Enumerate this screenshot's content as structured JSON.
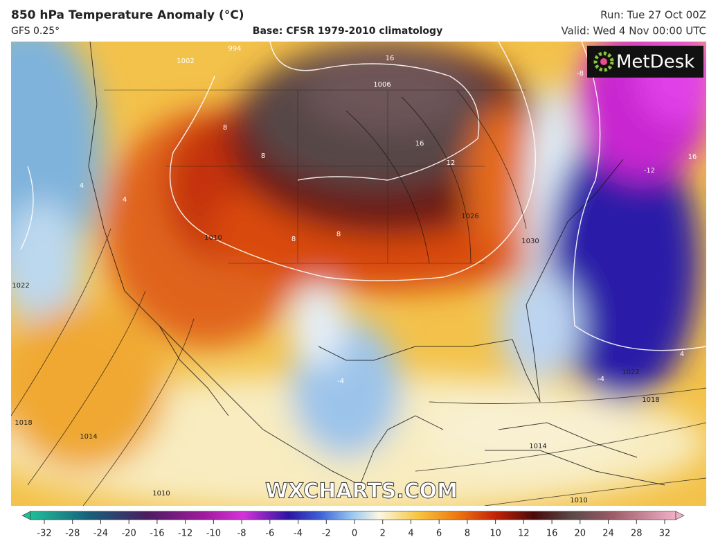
{
  "header": {
    "title": "850 hPa Temperature Anomaly (°C)",
    "model": "GFS 0.25°",
    "base": "Base: CFSR 1979-2010 climatology",
    "run": "Run: Tue 27 Oct 00Z",
    "valid": "Valid: Wed 4 Nov 00:00 UTC"
  },
  "logo": "MetDesk",
  "watermark": "WXCHARTS.COM",
  "map_labels": [
    "994",
    "1002",
    "16",
    "1006",
    "16",
    "12",
    "-8",
    "16",
    "-12",
    "8",
    "8",
    "8",
    "8",
    "4",
    "4",
    "1010",
    "1026",
    "1030",
    "1022",
    "1018",
    "1014",
    "1010",
    "-4",
    "1022",
    "-4",
    "1018",
    "1014",
    "1010",
    "4"
  ],
  "colorbar": {
    "ticks": [
      -32,
      -28,
      -24,
      -20,
      -16,
      -12,
      -10,
      -8,
      -6,
      -4,
      -2,
      0,
      2,
      4,
      6,
      8,
      10,
      12,
      16,
      20,
      24,
      28,
      32
    ]
  }
}
